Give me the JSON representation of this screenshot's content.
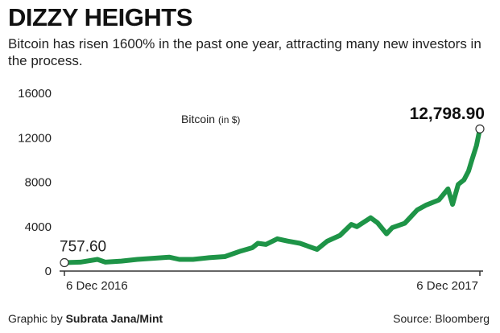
{
  "header": {
    "title": "DIZZY HEIGHTS",
    "subtitle": "Bitcoin has risen 1600% in the past one year, attracting many new investors in the process."
  },
  "footer": {
    "credit_prefix": "Graphic by ",
    "credit_author": "Subrata Jana/Mint",
    "source": "Source: Bloomberg"
  },
  "colors": {
    "line": "#1e9447",
    "axis": "#333333",
    "marker_fill": "#ffffff"
  },
  "chart_data": {
    "type": "line",
    "title": "DIZZY HEIGHTS",
    "series_label": "Bitcoin",
    "series_unit": "(in $)",
    "ylim": [
      0,
      16000
    ],
    "yticks": [
      0,
      4000,
      8000,
      12000,
      16000
    ],
    "ytick_labels": [
      "0",
      "4000",
      "8000",
      "12000",
      "16000"
    ],
    "xlim": [
      "2016-12-06",
      "2017-12-06"
    ],
    "xticks": [
      "2016-12-06",
      "2017-12-06"
    ],
    "xtick_labels": [
      "6 Dec 2016",
      "6 Dec 2017"
    ],
    "grid": false,
    "start_value_label": "757.60",
    "end_value_label": "12,798.90",
    "series": [
      {
        "name": "Bitcoin",
        "x": [
          "2016-12-06",
          "2016-12-20",
          "2017-01-04",
          "2017-01-11",
          "2017-01-25",
          "2017-02-08",
          "2017-02-22",
          "2017-03-08",
          "2017-03-17",
          "2017-03-29",
          "2017-04-12",
          "2017-04-26",
          "2017-05-10",
          "2017-05-20",
          "2017-05-25",
          "2017-06-01",
          "2017-06-11",
          "2017-06-20",
          "2017-07-01",
          "2017-07-16",
          "2017-07-25",
          "2017-08-05",
          "2017-08-15",
          "2017-08-20",
          "2017-09-01",
          "2017-09-07",
          "2017-09-15",
          "2017-09-20",
          "2017-10-01",
          "2017-10-12",
          "2017-10-20",
          "2017-10-31",
          "2017-11-08",
          "2017-11-12",
          "2017-11-17",
          "2017-11-22",
          "2017-11-26",
          "2017-11-29",
          "2017-12-03",
          "2017-12-06"
        ],
        "values": [
          757.6,
          800,
          1050,
          800,
          900,
          1050,
          1150,
          1250,
          1050,
          1050,
          1200,
          1300,
          1800,
          2100,
          2500,
          2400,
          2900,
          2700,
          2500,
          1950,
          2700,
          3200,
          4200,
          4000,
          4800,
          4350,
          3350,
          3900,
          4300,
          5500,
          5950,
          6400,
          7400,
          6000,
          7800,
          8200,
          9000,
          10000,
          11300,
          12798.9
        ]
      }
    ]
  }
}
